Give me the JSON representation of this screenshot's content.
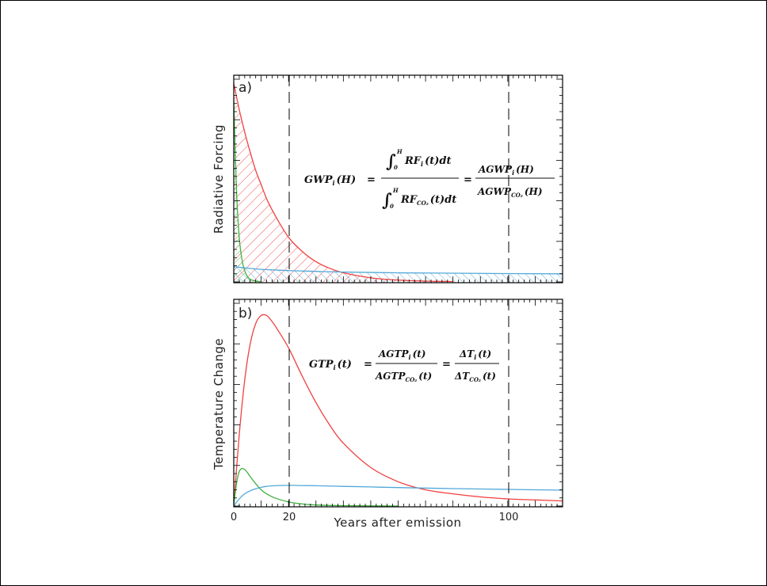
{
  "chart_data": [
    {
      "panel_label": "a)",
      "type": "line",
      "ylabel": "Radiative Forcing",
      "xlabel": "",
      "xlim": [
        0,
        120
      ],
      "ylim": [
        0,
        1
      ],
      "vlines": [
        20,
        100
      ],
      "hatched": true,
      "equation": {
        "lhs": "GWP",
        "lhs_sub": "i",
        "lhs_arg": "(H)",
        "eq1": "=",
        "num_int_upper": "H",
        "num_int_lower": "0",
        "num_body": "RF",
        "num_sub": "i",
        "num_tail": "(t)dt",
        "den_int_upper": "H",
        "den_int_lower": "0",
        "den_body": "RF",
        "den_sub": "CO₂",
        "den_tail": "(t)dt",
        "eq2": "=",
        "r_num": "AGWP",
        "r_num_sub": "i",
        "r_num_tail": "(H)",
        "r_den": "AGWP",
        "r_den_sub": "CO₂",
        "r_den_tail": "(H)"
      },
      "series": [
        {
          "color": "#f04040",
          "x": [
            0,
            2,
            4,
            6,
            8,
            10,
            12,
            15,
            20,
            25,
            30,
            35,
            40,
            50,
            60,
            70,
            80
          ],
          "y": [
            0.98,
            0.85,
            0.74,
            0.64,
            0.55,
            0.48,
            0.41,
            0.33,
            0.22,
            0.15,
            0.1,
            0.067,
            0.045,
            0.02,
            0.009,
            0.004,
            0.002
          ]
        },
        {
          "color": "#40b040",
          "x": [
            0,
            1,
            2,
            3,
            4,
            5,
            6,
            8,
            10
          ],
          "y": [
            0.9,
            0.45,
            0.22,
            0.11,
            0.055,
            0.027,
            0.013,
            0.004,
            0.001
          ]
        },
        {
          "color": "#50a8d8",
          "x": [
            0,
            5,
            10,
            20,
            30,
            40,
            60,
            80,
            100,
            120
          ],
          "y": [
            0.075,
            0.068,
            0.062,
            0.056,
            0.052,
            0.049,
            0.045,
            0.043,
            0.041,
            0.04
          ]
        }
      ]
    },
    {
      "panel_label": "b)",
      "type": "line",
      "ylabel": "Temperature Change",
      "xlabel": "Years after emission",
      "xlim": [
        0,
        120
      ],
      "ylim": [
        0,
        1
      ],
      "vlines": [
        20,
        100
      ],
      "xticks": [
        "0",
        "20",
        "100"
      ],
      "equation": {
        "lhs": "GTP",
        "lhs_sub": "i",
        "lhs_arg": "(t)",
        "eq1": "=",
        "num": "AGTP",
        "num_sub": "i",
        "num_tail": "(t)",
        "den": "AGTP",
        "den_sub": "CO₂",
        "den_tail": "(t)",
        "eq2": "=",
        "r_num": "ΔT",
        "r_num_sub": "i",
        "r_num_tail": "(t)",
        "r_den": "ΔT",
        "r_den_sub": "CO₂",
        "r_den_tail": "(t)"
      },
      "series": [
        {
          "color": "#f04040",
          "x": [
            0,
            2,
            4,
            6,
            8,
            10,
            12,
            14,
            16,
            20,
            25,
            30,
            35,
            40,
            50,
            60,
            70,
            80,
            90,
            100,
            110,
            120
          ],
          "y": [
            0,
            0.35,
            0.62,
            0.8,
            0.9,
            0.94,
            0.94,
            0.91,
            0.87,
            0.78,
            0.64,
            0.51,
            0.4,
            0.31,
            0.19,
            0.12,
            0.08,
            0.06,
            0.045,
            0.035,
            0.03,
            0.025
          ]
        },
        {
          "color": "#40b040",
          "x": [
            0,
            1,
            2,
            3,
            4,
            5,
            6,
            8,
            10,
            12,
            15,
            20,
            25,
            30,
            40,
            60
          ],
          "y": [
            0,
            0.11,
            0.17,
            0.185,
            0.18,
            0.165,
            0.145,
            0.11,
            0.08,
            0.06,
            0.04,
            0.02,
            0.01,
            0.005,
            0.002,
            0
          ]
        },
        {
          "color": "#50a8d8",
          "x": [
            0,
            2,
            4,
            6,
            8,
            10,
            12,
            15,
            20,
            25,
            30,
            40,
            50,
            60,
            80,
            100,
            120
          ],
          "y": [
            0,
            0.035,
            0.06,
            0.075,
            0.085,
            0.092,
            0.097,
            0.1,
            0.102,
            0.101,
            0.1,
            0.097,
            0.094,
            0.091,
            0.086,
            0.082,
            0.078
          ]
        }
      ]
    }
  ]
}
